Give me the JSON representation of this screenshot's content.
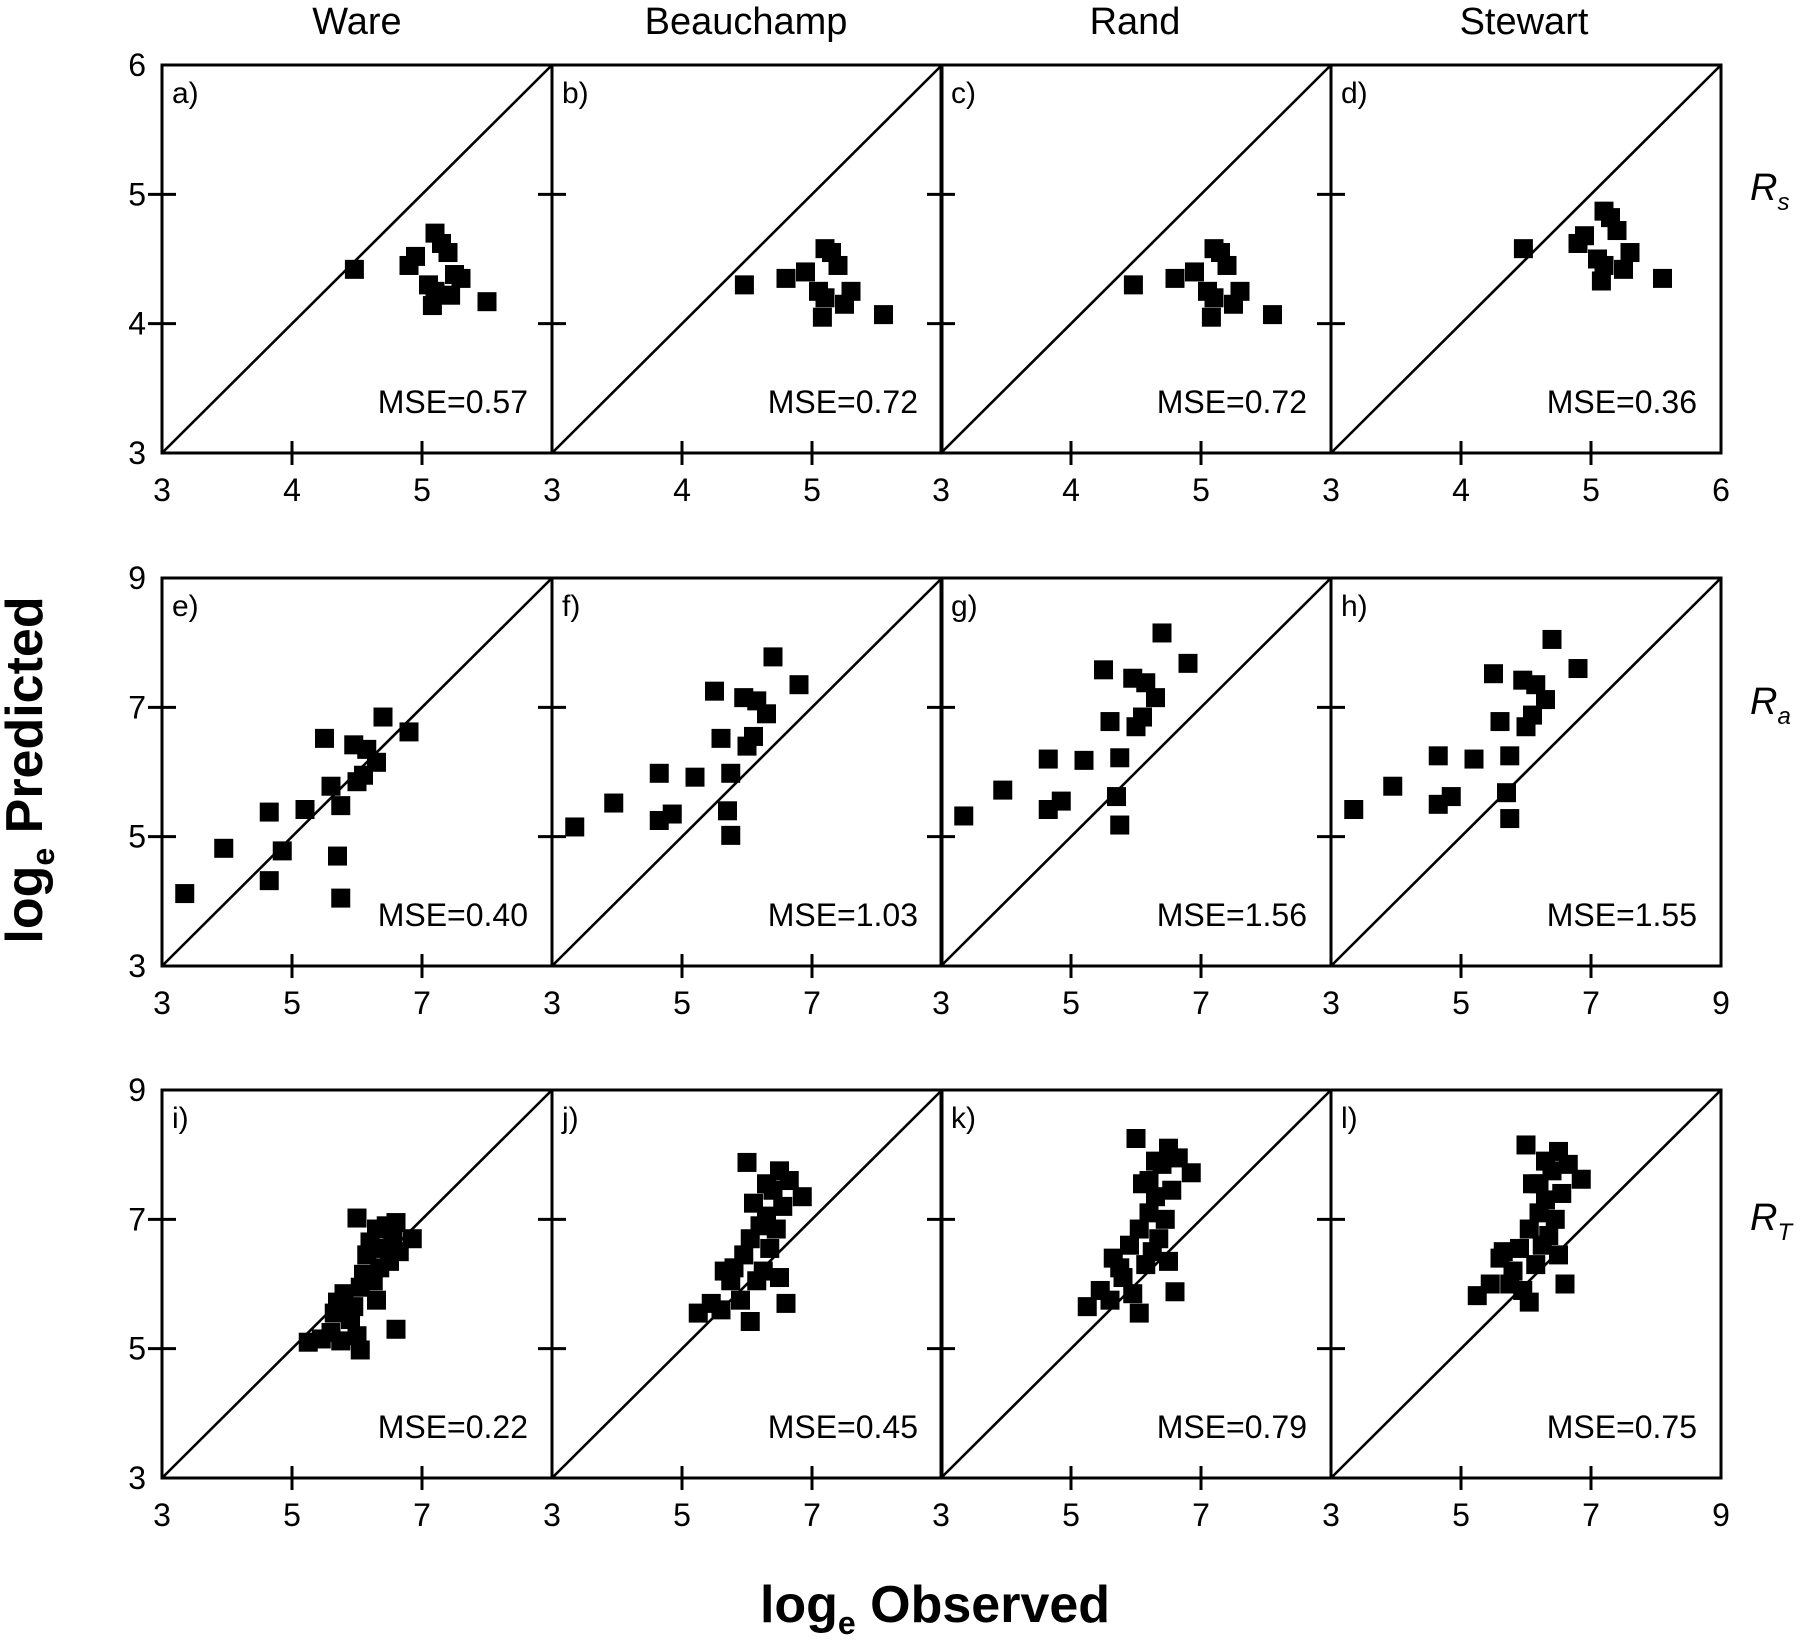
{
  "column_titles": [
    "Ware",
    "Beauchamp",
    "Rand",
    "Stewart"
  ],
  "row_labels": [
    {
      "main": "R",
      "sub": "s"
    },
    {
      "main": "R",
      "sub": "a"
    },
    {
      "main": "R",
      "sub": "T"
    }
  ],
  "axis_titles": {
    "y_main": "log",
    "y_sub": "e",
    "y_rest": " Predicted",
    "x_main": "log",
    "x_sub": "e",
    "x_rest": " Observed"
  },
  "colors": {
    "marker": "#000000",
    "axis": "#000000",
    "background": "#ffffff"
  },
  "rows": [
    {
      "label": "Rs",
      "xlim": [
        3,
        6
      ],
      "ylim": [
        3,
        6
      ],
      "xticks": [
        3,
        4,
        5,
        6
      ],
      "yticks": [
        3,
        4,
        5,
        6
      ]
    },
    {
      "label": "Ra",
      "xlim": [
        3,
        9
      ],
      "ylim": [
        3,
        9
      ],
      "xticks": [
        3,
        5,
        7,
        9
      ],
      "yticks": [
        3,
        5,
        7,
        9
      ]
    },
    {
      "label": "RT",
      "xlim": [
        3,
        9
      ],
      "ylim": [
        3,
        9
      ],
      "xticks": [
        3,
        5,
        7,
        9
      ],
      "yticks": [
        3,
        5,
        7,
        9
      ]
    }
  ],
  "chart_data": [
    {
      "type": "scatter",
      "panel": "a)",
      "model": "Ware",
      "row": "Rs",
      "mse_text": "MSE=0.57",
      "xlim": [
        3,
        6
      ],
      "ylim": [
        3,
        6
      ],
      "reference_line": "1:1",
      "points": [
        [
          4.48,
          4.42
        ],
        [
          4.9,
          4.45
        ],
        [
          4.95,
          4.52
        ],
        [
          5.1,
          4.7
        ],
        [
          5.15,
          4.62
        ],
        [
          5.2,
          4.55
        ],
        [
          5.25,
          4.38
        ],
        [
          5.3,
          4.35
        ],
        [
          5.1,
          4.25
        ],
        [
          5.05,
          4.3
        ],
        [
          5.08,
          4.14
        ],
        [
          5.22,
          4.22
        ],
        [
          5.5,
          4.17
        ]
      ]
    },
    {
      "type": "scatter",
      "panel": "b)",
      "model": "Beauchamp",
      "row": "Rs",
      "mse_text": "MSE=0.72",
      "xlim": [
        3,
        6
      ],
      "ylim": [
        3,
        6
      ],
      "reference_line": "1:1",
      "points": [
        [
          4.48,
          4.3
        ],
        [
          4.8,
          4.35
        ],
        [
          4.95,
          4.4
        ],
        [
          5.1,
          4.58
        ],
        [
          5.15,
          4.55
        ],
        [
          5.2,
          4.45
        ],
        [
          5.3,
          4.25
        ],
        [
          5.1,
          4.2
        ],
        [
          5.05,
          4.25
        ],
        [
          5.08,
          4.05
        ],
        [
          5.25,
          4.15
        ],
        [
          5.55,
          4.07
        ]
      ]
    },
    {
      "type": "scatter",
      "panel": "c)",
      "model": "Rand",
      "row": "Rs",
      "mse_text": "MSE=0.72",
      "xlim": [
        3,
        6
      ],
      "ylim": [
        3,
        6
      ],
      "reference_line": "1:1",
      "points": [
        [
          4.48,
          4.3
        ],
        [
          4.8,
          4.35
        ],
        [
          4.95,
          4.4
        ],
        [
          5.1,
          4.58
        ],
        [
          5.15,
          4.55
        ],
        [
          5.2,
          4.45
        ],
        [
          5.3,
          4.25
        ],
        [
          5.1,
          4.2
        ],
        [
          5.05,
          4.25
        ],
        [
          5.08,
          4.05
        ],
        [
          5.25,
          4.15
        ],
        [
          5.55,
          4.07
        ]
      ]
    },
    {
      "type": "scatter",
      "panel": "d)",
      "model": "Stewart",
      "row": "Rs",
      "mse_text": "MSE=0.36",
      "xlim": [
        3,
        6
      ],
      "ylim": [
        3,
        6
      ],
      "reference_line": "1:1",
      "points": [
        [
          4.48,
          4.58
        ],
        [
          4.9,
          4.62
        ],
        [
          4.95,
          4.68
        ],
        [
          5.1,
          4.87
        ],
        [
          5.15,
          4.82
        ],
        [
          5.2,
          4.72
        ],
        [
          5.3,
          4.55
        ],
        [
          5.25,
          4.42
        ],
        [
          5.1,
          4.45
        ],
        [
          5.05,
          4.5
        ],
        [
          5.08,
          4.33
        ],
        [
          5.55,
          4.35
        ]
      ]
    },
    {
      "type": "scatter",
      "panel": "e)",
      "model": "Ware",
      "row": "Ra",
      "mse_text": "MSE=0.40",
      "xlim": [
        3,
        9
      ],
      "ylim": [
        3,
        9
      ],
      "reference_line": "1:1",
      "points": [
        [
          3.35,
          4.12
        ],
        [
          3.95,
          4.82
        ],
        [
          4.65,
          5.38
        ],
        [
          4.65,
          4.32
        ],
        [
          4.85,
          4.78
        ],
        [
          5.2,
          5.42
        ],
        [
          5.5,
          6.52
        ],
        [
          5.6,
          5.78
        ],
        [
          5.75,
          5.48
        ],
        [
          5.7,
          4.7
        ],
        [
          5.75,
          4.05
        ],
        [
          5.95,
          6.42
        ],
        [
          6.0,
          5.85
        ],
        [
          6.1,
          5.95
        ],
        [
          6.15,
          6.35
        ],
        [
          6.3,
          6.15
        ],
        [
          6.4,
          6.85
        ],
        [
          6.8,
          6.62
        ]
      ]
    },
    {
      "type": "scatter",
      "panel": "f)",
      "model": "Beauchamp",
      "row": "Ra",
      "mse_text": "MSE=1.03",
      "xlim": [
        3,
        9
      ],
      "ylim": [
        3,
        9
      ],
      "reference_line": "1:1",
      "points": [
        [
          3.35,
          5.15
        ],
        [
          3.95,
          5.52
        ],
        [
          4.65,
          5.98
        ],
        [
          4.65,
          5.25
        ],
        [
          4.85,
          5.35
        ],
        [
          5.2,
          5.92
        ],
        [
          5.5,
          7.25
        ],
        [
          5.6,
          6.52
        ],
        [
          5.75,
          5.98
        ],
        [
          5.7,
          5.4
        ],
        [
          5.75,
          5.02
        ],
        [
          5.95,
          7.15
        ],
        [
          6.0,
          6.4
        ],
        [
          6.1,
          6.55
        ],
        [
          6.15,
          7.1
        ],
        [
          6.3,
          6.9
        ],
        [
          6.4,
          7.78
        ],
        [
          6.8,
          7.35
        ]
      ]
    },
    {
      "type": "scatter",
      "panel": "g)",
      "model": "Rand",
      "row": "Ra",
      "mse_text": "MSE=1.56",
      "xlim": [
        3,
        9
      ],
      "ylim": [
        3,
        9
      ],
      "reference_line": "1:1",
      "points": [
        [
          3.35,
          5.32
        ],
        [
          3.95,
          5.72
        ],
        [
          4.65,
          6.2
        ],
        [
          4.65,
          5.42
        ],
        [
          4.85,
          5.55
        ],
        [
          5.2,
          6.18
        ],
        [
          5.5,
          7.58
        ],
        [
          5.6,
          6.78
        ],
        [
          5.75,
          6.22
        ],
        [
          5.7,
          5.62
        ],
        [
          5.75,
          5.18
        ],
        [
          5.95,
          7.45
        ],
        [
          6.0,
          6.7
        ],
        [
          6.1,
          6.85
        ],
        [
          6.15,
          7.38
        ],
        [
          6.3,
          7.15
        ],
        [
          6.4,
          8.15
        ],
        [
          6.8,
          7.68
        ]
      ]
    },
    {
      "type": "scatter",
      "panel": "h)",
      "model": "Stewart",
      "row": "Ra",
      "mse_text": "MSE=1.55",
      "xlim": [
        3,
        9
      ],
      "ylim": [
        3,
        9
      ],
      "reference_line": "1:1",
      "points": [
        [
          3.35,
          5.42
        ],
        [
          3.95,
          5.78
        ],
        [
          4.65,
          6.25
        ],
        [
          4.65,
          5.5
        ],
        [
          4.85,
          5.62
        ],
        [
          5.2,
          6.2
        ],
        [
          5.5,
          7.52
        ],
        [
          5.6,
          6.78
        ],
        [
          5.75,
          6.25
        ],
        [
          5.7,
          5.68
        ],
        [
          5.75,
          5.28
        ],
        [
          5.95,
          7.42
        ],
        [
          6.0,
          6.7
        ],
        [
          6.1,
          6.88
        ],
        [
          6.15,
          7.35
        ],
        [
          6.3,
          7.12
        ],
        [
          6.4,
          8.05
        ],
        [
          6.8,
          7.6
        ]
      ]
    },
    {
      "type": "scatter",
      "panel": "i)",
      "model": "Ware",
      "row": "RT",
      "mse_text": "MSE=0.22",
      "xlim": [
        3,
        9
      ],
      "ylim": [
        3,
        9
      ],
      "reference_line": "1:1",
      "points": [
        [
          5.25,
          5.1
        ],
        [
          5.45,
          5.15
        ],
        [
          5.6,
          5.25
        ],
        [
          5.75,
          5.12
        ],
        [
          5.65,
          5.55
        ],
        [
          5.7,
          5.72
        ],
        [
          5.8,
          5.85
        ],
        [
          5.9,
          5.45
        ],
        [
          5.95,
          5.65
        ],
        [
          6.0,
          5.2
        ],
        [
          6.05,
          4.98
        ],
        [
          6.05,
          5.95
        ],
        [
          6.1,
          6.15
        ],
        [
          6.15,
          6.45
        ],
        [
          6.2,
          6.65
        ],
        [
          6.25,
          6.05
        ],
        [
          6.3,
          5.75
        ],
        [
          6.35,
          6.25
        ],
        [
          6.4,
          6.55
        ],
        [
          6.45,
          6.9
        ],
        [
          6.5,
          6.35
        ],
        [
          6.55,
          6.75
        ],
        [
          6.6,
          5.3
        ],
        [
          6.65,
          6.5
        ],
        [
          6.0,
          7.02
        ],
        [
          6.85,
          6.7
        ],
        [
          6.3,
          6.85
        ],
        [
          6.6,
          6.95
        ]
      ]
    },
    {
      "type": "scatter",
      "panel": "j)",
      "model": "Beauchamp",
      "row": "RT",
      "mse_text": "MSE=0.45",
      "xlim": [
        3,
        9
      ],
      "ylim": [
        3,
        9
      ],
      "reference_line": "1:1",
      "points": [
        [
          5.25,
          5.55
        ],
        [
          5.45,
          5.7
        ],
        [
          5.6,
          5.6
        ],
        [
          5.75,
          6.05
        ],
        [
          5.65,
          6.2
        ],
        [
          5.8,
          6.25
        ],
        [
          5.9,
          5.75
        ],
        [
          5.95,
          6.45
        ],
        [
          6.05,
          5.42
        ],
        [
          6.05,
          6.7
        ],
        [
          6.1,
          7.25
        ],
        [
          6.15,
          6.05
        ],
        [
          6.2,
          6.9
        ],
        [
          6.25,
          6.2
        ],
        [
          6.3,
          7.05
        ],
        [
          6.35,
          6.55
        ],
        [
          6.4,
          7.45
        ],
        [
          6.45,
          6.85
        ],
        [
          6.5,
          6.1
        ],
        [
          6.55,
          7.2
        ],
        [
          6.6,
          5.7
        ],
        [
          6.65,
          7.6
        ],
        [
          6.0,
          7.88
        ],
        [
          6.85,
          7.35
        ],
        [
          6.3,
          7.55
        ],
        [
          6.5,
          7.75
        ]
      ]
    },
    {
      "type": "scatter",
      "panel": "k)",
      "model": "Rand",
      "row": "RT",
      "mse_text": "MSE=0.79",
      "xlim": [
        3,
        9
      ],
      "ylim": [
        3,
        9
      ],
      "reference_line": "1:1",
      "points": [
        [
          5.25,
          5.65
        ],
        [
          5.45,
          5.9
        ],
        [
          5.6,
          5.75
        ],
        [
          5.75,
          6.25
        ],
        [
          5.65,
          6.4
        ],
        [
          5.8,
          6.1
        ],
        [
          5.9,
          6.6
        ],
        [
          5.95,
          5.85
        ],
        [
          6.05,
          5.55
        ],
        [
          6.05,
          6.85
        ],
        [
          6.1,
          7.55
        ],
        [
          6.15,
          6.3
        ],
        [
          6.2,
          7.1
        ],
        [
          6.25,
          6.5
        ],
        [
          6.3,
          7.35
        ],
        [
          6.35,
          6.7
        ],
        [
          6.4,
          7.85
        ],
        [
          6.45,
          7.0
        ],
        [
          6.5,
          6.35
        ],
        [
          6.55,
          7.45
        ],
        [
          6.6,
          5.88
        ],
        [
          6.65,
          7.95
        ],
        [
          6.0,
          8.25
        ],
        [
          6.85,
          7.72
        ],
        [
          6.3,
          7.9
        ],
        [
          6.5,
          8.1
        ],
        [
          6.2,
          7.6
        ]
      ]
    },
    {
      "type": "scatter",
      "panel": "l)",
      "model": "Stewart",
      "row": "RT",
      "mse_text": "MSE=0.75",
      "xlim": [
        3,
        9
      ],
      "ylim": [
        3,
        9
      ],
      "reference_line": "1:1",
      "points": [
        [
          5.25,
          5.82
        ],
        [
          5.45,
          6.0
        ],
        [
          5.6,
          6.4
        ],
        [
          5.75,
          6.0
        ],
        [
          5.65,
          6.5
        ],
        [
          5.8,
          6.2
        ],
        [
          5.9,
          6.55
        ],
        [
          5.95,
          5.9
        ],
        [
          6.05,
          5.72
        ],
        [
          6.05,
          6.85
        ],
        [
          6.1,
          7.55
        ],
        [
          6.15,
          6.3
        ],
        [
          6.2,
          7.1
        ],
        [
          6.25,
          6.6
        ],
        [
          6.3,
          7.3
        ],
        [
          6.35,
          6.75
        ],
        [
          6.4,
          7.75
        ],
        [
          6.45,
          7.0
        ],
        [
          6.5,
          6.45
        ],
        [
          6.55,
          7.4
        ],
        [
          6.6,
          6.0
        ],
        [
          6.65,
          7.85
        ],
        [
          6.0,
          8.15
        ],
        [
          6.85,
          7.62
        ],
        [
          6.3,
          7.9
        ],
        [
          6.5,
          8.05
        ],
        [
          6.2,
          7.55
        ]
      ]
    }
  ]
}
